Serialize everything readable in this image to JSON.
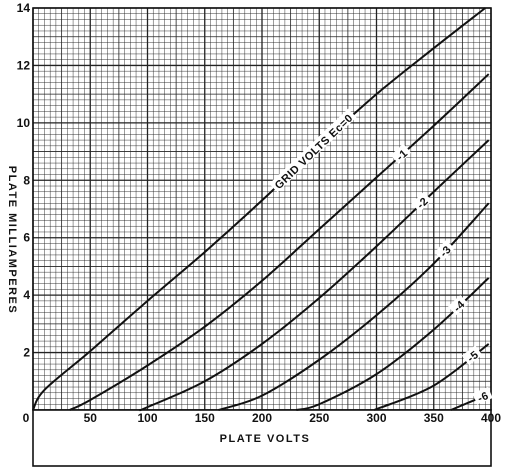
{
  "chart_data": {
    "type": "line",
    "title": "",
    "xlabel": "PLATE VOLTS",
    "ylabel": "PLATE MILLIAMPERES",
    "xlim": [
      0,
      400
    ],
    "ylim": [
      0,
      14
    ],
    "x_ticks": [
      "0",
      "50",
      "100",
      "150",
      "200",
      "250",
      "300",
      "350",
      "400"
    ],
    "y_ticks": [
      "0",
      "2",
      "4",
      "6",
      "8",
      "10",
      "12",
      "14"
    ],
    "grid": true,
    "series": [
      {
        "name": "GRID VOLTS Ec=0",
        "points": [
          [
            0,
            0
          ],
          [
            10,
            0.7
          ],
          [
            50,
            2.05
          ],
          [
            100,
            3.8
          ],
          [
            150,
            5.5
          ],
          [
            200,
            7.3
          ],
          [
            250,
            9.2
          ],
          [
            300,
            11.0
          ],
          [
            350,
            12.6
          ],
          [
            395,
            14.0
          ]
        ]
      },
      {
        "name": "-1",
        "points": [
          [
            32,
            0
          ],
          [
            50,
            0.35
          ],
          [
            100,
            1.55
          ],
          [
            150,
            2.9
          ],
          [
            200,
            4.5
          ],
          [
            250,
            6.3
          ],
          [
            300,
            8.1
          ],
          [
            350,
            9.9
          ],
          [
            398,
            11.7
          ]
        ]
      },
      {
        "name": "-2",
        "points": [
          [
            93,
            0
          ],
          [
            100,
            0.1
          ],
          [
            150,
            1.0
          ],
          [
            200,
            2.3
          ],
          [
            250,
            3.9
          ],
          [
            300,
            5.7
          ],
          [
            350,
            7.6
          ],
          [
            398,
            9.4
          ]
        ]
      },
      {
        "name": "-3",
        "points": [
          [
            162,
            0
          ],
          [
            200,
            0.5
          ],
          [
            250,
            1.75
          ],
          [
            300,
            3.3
          ],
          [
            350,
            5.1
          ],
          [
            398,
            7.2
          ]
        ]
      },
      {
        "name": "-4",
        "points": [
          [
            230,
            0
          ],
          [
            250,
            0.2
          ],
          [
            300,
            1.25
          ],
          [
            350,
            2.8
          ],
          [
            398,
            4.6
          ]
        ]
      },
      {
        "name": "-5",
        "points": [
          [
            298,
            0
          ],
          [
            350,
            0.85
          ],
          [
            398,
            2.3
          ]
        ]
      },
      {
        "name": "-6",
        "points": [
          [
            365,
            0
          ],
          [
            398,
            0.55
          ]
        ]
      }
    ]
  }
}
